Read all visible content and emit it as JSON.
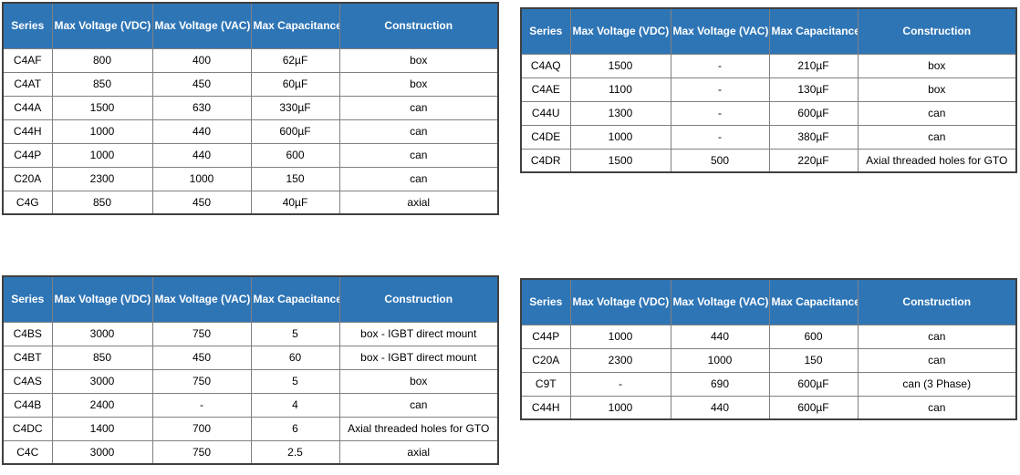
{
  "colors": {
    "header_bg": "#2E75B6",
    "header_text": "#FFFFFF",
    "cell_text": "#000000",
    "grid_border": "#808080",
    "outer_border": "#404040",
    "page_bg": "#FFFFFF"
  },
  "columns": [
    "Series",
    "Max Voltage (VDC)",
    "Max Voltage (VAC)",
    "Max Capacitance",
    "Construction"
  ],
  "tables": [
    {
      "name": "top-left",
      "rows": [
        [
          "C4AF",
          "800",
          "400",
          "62µF",
          "box"
        ],
        [
          "C4AT",
          "850",
          "450",
          "60µF",
          "box"
        ],
        [
          "C44A",
          "1500",
          "630",
          "330µF",
          "can"
        ],
        [
          "C44H",
          "1000",
          "440",
          "600µF",
          "can"
        ],
        [
          "C44P",
          "1000",
          "440",
          "600",
          "can"
        ],
        [
          "C20A",
          "2300",
          "1000",
          "150",
          "can"
        ],
        [
          "C4G",
          "850",
          "450",
          "40µF",
          "axial"
        ]
      ]
    },
    {
      "name": "top-right",
      "rows": [
        [
          "C4AQ",
          "1500",
          "-",
          "210µF",
          "box"
        ],
        [
          "C4AE",
          "1100",
          "-",
          "130µF",
          "box"
        ],
        [
          "C44U",
          "1300",
          "-",
          "600µF",
          "can"
        ],
        [
          "C4DE",
          "1000",
          "-",
          "380µF",
          "can"
        ],
        [
          "C4DR",
          "1500",
          "500",
          "220µF",
          "Axial threaded holes for GTO"
        ]
      ]
    },
    {
      "name": "bottom-left",
      "rows": [
        [
          "C4BS",
          "3000",
          "750",
          "5",
          "box - IGBT direct mount"
        ],
        [
          "C4BT",
          "850",
          "450",
          "60",
          "box - IGBT direct mount"
        ],
        [
          "C4AS",
          "3000",
          "750",
          "5",
          "box"
        ],
        [
          "C44B",
          "2400",
          "-",
          "4",
          "can"
        ],
        [
          "C4DC",
          "1400",
          "700",
          "6",
          "Axial threaded holes for GTO"
        ],
        [
          "C4C",
          "3000",
          "750",
          "2.5",
          "axial"
        ]
      ]
    },
    {
      "name": "bottom-right",
      "rows": [
        [
          "C44P",
          "1000",
          "440",
          "600",
          "can"
        ],
        [
          "C20A",
          "2300",
          "1000",
          "150",
          "can"
        ],
        [
          "C9T",
          "-",
          "690",
          "600µF",
          "can (3 Phase)"
        ],
        [
          "C44H",
          "1000",
          "440",
          "600µF",
          "can"
        ]
      ]
    }
  ]
}
